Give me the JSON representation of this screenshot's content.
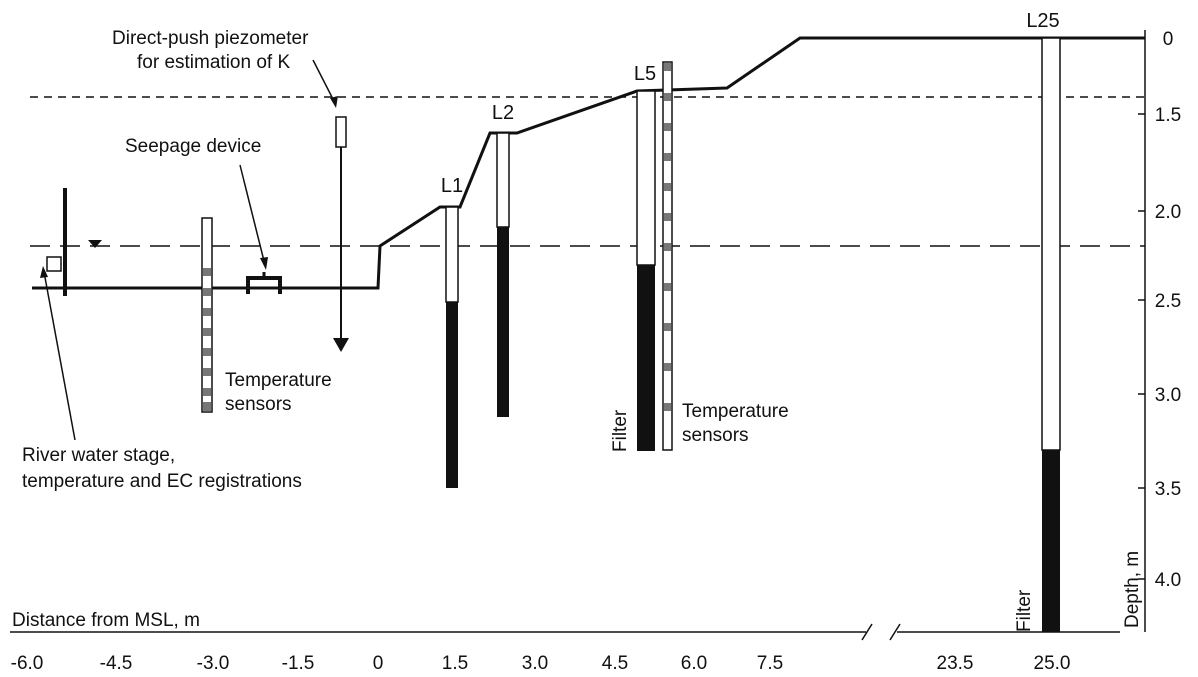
{
  "wells": [
    {
      "id": "L1",
      "label": "L1"
    },
    {
      "id": "L2",
      "label": "L2"
    },
    {
      "id": "L5",
      "label": "L5"
    },
    {
      "id": "L25",
      "label": "L25"
    }
  ],
  "annotations": {
    "piezometer": [
      "Direct-push piezometer",
      "for estimation of K"
    ],
    "seepage": "Seepage device",
    "temp_left": [
      "Temperature",
      "sensors"
    ],
    "temp_right": [
      "Temperature",
      "sensors"
    ],
    "river": [
      "River water stage,",
      "temperature and EC registrations"
    ],
    "filter_l5": "Filter",
    "filter_l25": "Filter"
  },
  "axes": {
    "x_title": "Distance from MSL, m",
    "y_title": "Depth, m",
    "x_ticks": [
      "-6.0",
      "-4.5",
      "-3.0",
      "-1.5",
      "0",
      "1.5",
      "3.0",
      "4.5",
      "6.0",
      "7.5",
      "23.5",
      "25.0"
    ],
    "y_ticks": [
      "0",
      "1.5",
      "2.0",
      "2.5",
      "3.0",
      "3.5",
      "4.0"
    ]
  }
}
